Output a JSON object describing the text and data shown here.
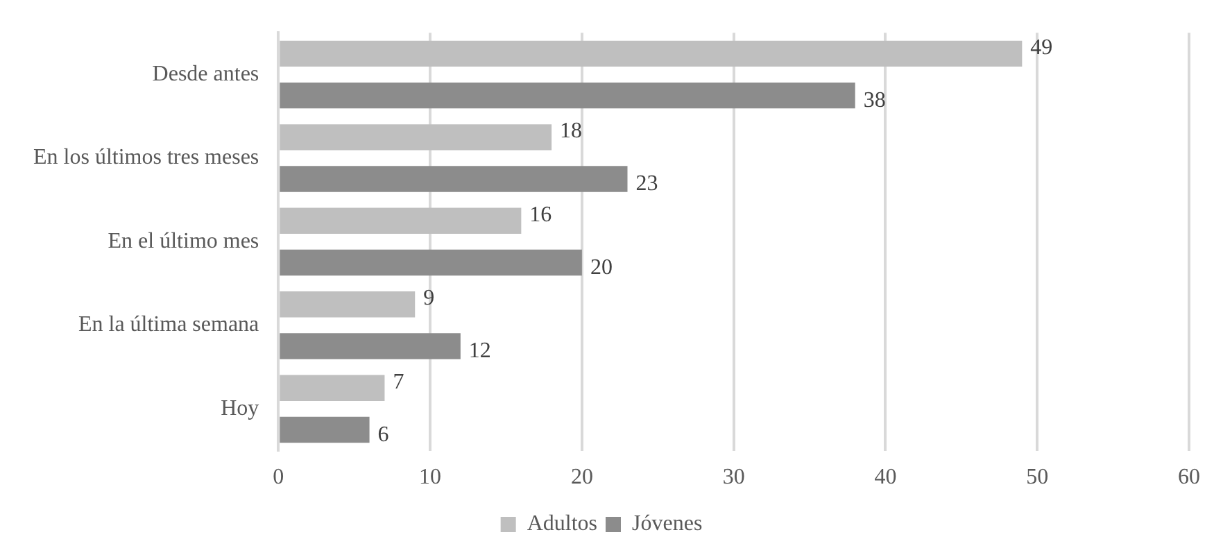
{
  "chart_data": {
    "type": "bar",
    "orientation": "horizontal",
    "categories": [
      "Desde antes",
      "En los últimos tres meses",
      "En el último mes",
      "En la última semana",
      "Hoy"
    ],
    "series": [
      {
        "name": "Adultos",
        "color": "#bfbfbf",
        "values": [
          49,
          18,
          16,
          9,
          7
        ]
      },
      {
        "name": "Jóvenes",
        "color": "#8c8c8c",
        "values": [
          38,
          23,
          20,
          12,
          6
        ]
      }
    ],
    "xlim": [
      0,
      60
    ],
    "xticks": [
      0,
      10,
      20,
      30,
      40,
      50,
      60
    ],
    "grid": "x",
    "legend": "bottom",
    "data_labels": true
  }
}
